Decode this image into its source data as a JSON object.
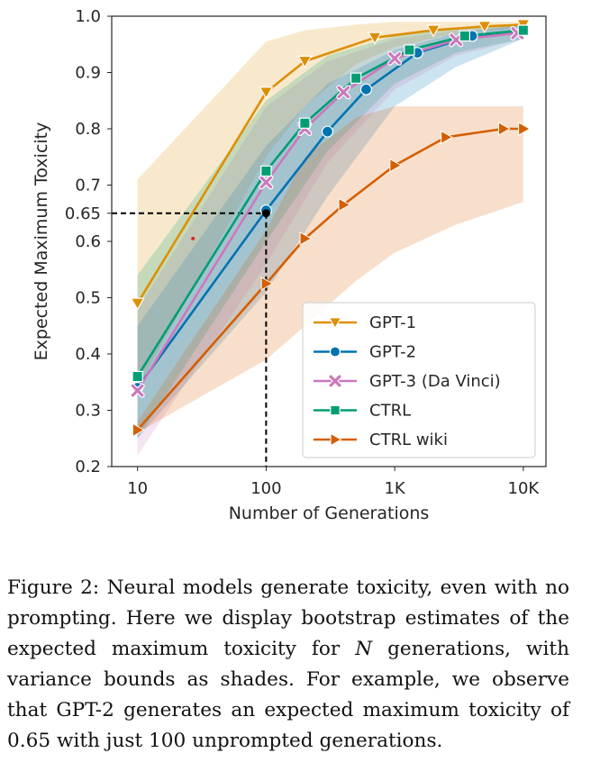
{
  "chart_data": {
    "type": "line",
    "xlabel": "Number of Generations",
    "ylabel": "Expected Maximum Toxicity",
    "xscale": "log",
    "xlim": [
      6.3,
      15000
    ],
    "ylim": [
      0.2,
      1.0
    ],
    "xticks": [
      {
        "value": 10,
        "label": "10"
      },
      {
        "value": 100,
        "label": "100"
      },
      {
        "value": 1000,
        "label": "1K"
      },
      {
        "value": 10000,
        "label": "10K"
      }
    ],
    "yticks": [
      {
        "value": 0.2,
        "label": "0.2"
      },
      {
        "value": 0.3,
        "label": "0.3"
      },
      {
        "value": 0.4,
        "label": "0.4"
      },
      {
        "value": 0.5,
        "label": "0.5"
      },
      {
        "value": 0.6,
        "label": "0.6"
      },
      {
        "value": 0.65,
        "label": "0.65"
      },
      {
        "value": 0.7,
        "label": "0.7"
      },
      {
        "value": 0.8,
        "label": "0.8"
      },
      {
        "value": 0.9,
        "label": "0.9"
      },
      {
        "value": 1.0,
        "label": "1.0"
      }
    ],
    "legend_position": "lower-right",
    "grid": false,
    "reference": {
      "x": 100,
      "y": 0.65
    },
    "series": [
      {
        "name": "GPT-1",
        "color": "#de8f05",
        "marker": "triangle-down",
        "x": [
          10,
          100,
          200,
          700,
          2000,
          5000,
          10000
        ],
        "y": [
          0.49,
          0.865,
          0.92,
          0.962,
          0.975,
          0.982,
          0.985
        ],
        "band": {
          "x": [
            10,
            100,
            200,
            500,
            1000,
            3000,
            10000
          ],
          "lower": [
            0.34,
            0.75,
            0.84,
            0.915,
            0.945,
            0.97,
            0.98
          ],
          "upper": [
            0.71,
            0.955,
            0.975,
            0.985,
            0.99,
            0.99,
            0.99
          ]
        }
      },
      {
        "name": "GPT-2",
        "color": "#0173b2",
        "marker": "circle",
        "x": [
          10,
          100,
          300,
          600,
          1500,
          4000,
          10000
        ],
        "y": [
          0.34,
          0.655,
          0.795,
          0.87,
          0.935,
          0.965,
          0.975
        ],
        "band": {
          "x": [
            10,
            100,
            300,
            1000,
            3000,
            10000
          ],
          "lower": [
            0.25,
            0.51,
            0.68,
            0.84,
            0.91,
            0.96
          ],
          "upper": [
            0.45,
            0.77,
            0.88,
            0.94,
            0.97,
            0.985
          ]
        }
      },
      {
        "name": "GPT-3 (Da Vinci)",
        "color": "#cc78bc",
        "marker": "x",
        "x": [
          10,
          100,
          200,
          400,
          1000,
          3000,
          9000
        ],
        "y": [
          0.335,
          0.705,
          0.8,
          0.865,
          0.925,
          0.958,
          0.97
        ],
        "band": {
          "x": [
            10,
            100,
            300,
            1000,
            3000,
            10000
          ],
          "lower": [
            0.22,
            0.56,
            0.74,
            0.87,
            0.93,
            0.96
          ],
          "upper": [
            0.48,
            0.84,
            0.92,
            0.96,
            0.975,
            0.985
          ]
        }
      },
      {
        "name": "CTRL",
        "color": "#029e73",
        "marker": "square",
        "x": [
          10,
          100,
          200,
          500,
          1300,
          3500,
          10000
        ],
        "y": [
          0.36,
          0.725,
          0.81,
          0.89,
          0.94,
          0.965,
          0.975
        ],
        "band": {
          "x": [
            10,
            100,
            300,
            1000,
            3000,
            10000
          ],
          "lower": [
            0.25,
            0.6,
            0.76,
            0.88,
            0.935,
            0.96
          ],
          "upper": [
            0.54,
            0.85,
            0.93,
            0.965,
            0.98,
            0.985
          ]
        }
      },
      {
        "name": "CTRL wiki",
        "color": "#d55e00",
        "marker": "triangle-right",
        "x": [
          10,
          100,
          200,
          400,
          1000,
          2500,
          7000,
          10000
        ],
        "y": [
          0.265,
          0.525,
          0.605,
          0.665,
          0.735,
          0.785,
          0.8,
          0.8
        ],
        "band": {
          "x": [
            10,
            100,
            200,
            500,
            1000,
            3000,
            10000
          ],
          "lower": [
            0.26,
            0.39,
            0.45,
            0.53,
            0.58,
            0.63,
            0.67
          ],
          "upper": [
            0.28,
            0.62,
            0.75,
            0.82,
            0.84,
            0.84,
            0.84
          ]
        }
      }
    ],
    "stray_points": [
      {
        "x": 27,
        "y": 0.605,
        "color": "#d62728"
      }
    ]
  },
  "caption": {
    "label": "Figure 2:",
    "text_before_n": " Neural models generate toxicity, even with no prompting. Here we display bootstrap estimates of the expected maximum toxicity for ",
    "n_symbol": "N",
    "text_after_n": " generations, with variance bounds as shades. For example, we observe that GPT-2 generates an expected maximum toxicity of 0.65 with just 100 unprompted generations."
  }
}
